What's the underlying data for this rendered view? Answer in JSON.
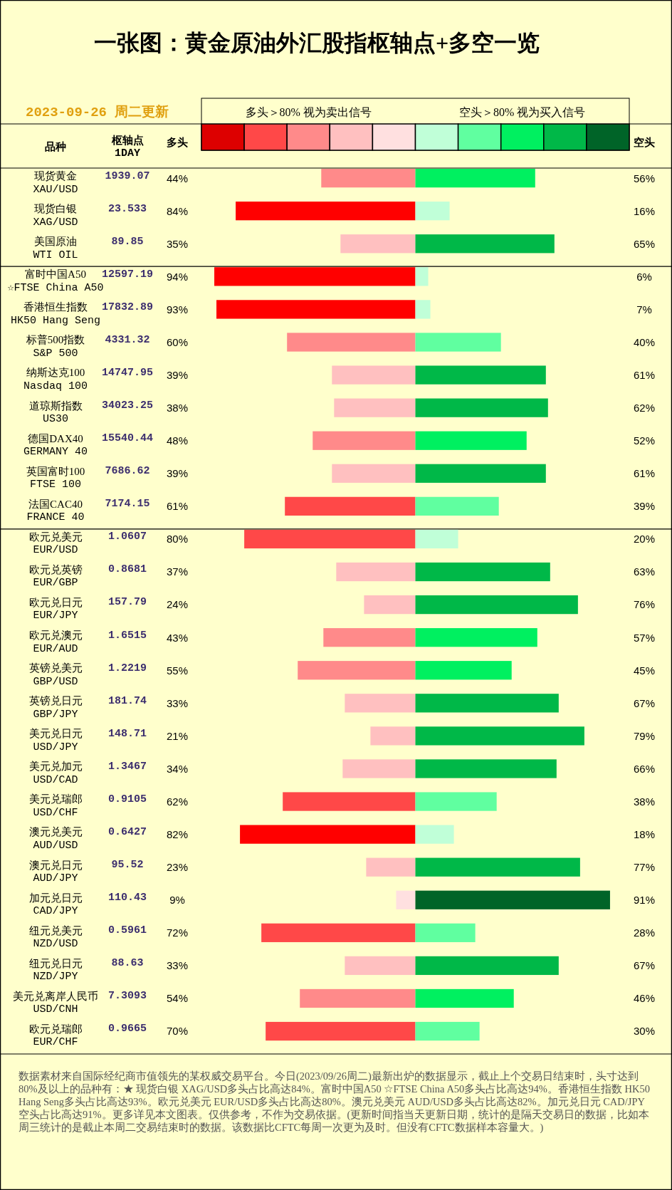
{
  "chart_data": [
    {
      "type": "bar",
      "orientation": "horizontal",
      "title": "一张图：黄金原油外汇股指枢轴点+多空一览",
      "subtitle": "2023-09-26 周二更新",
      "ylabel": "品种",
      "tick_labels": "y",
      "annotations": [
        "多头＞80% 视为卖出信号",
        "枢轴点\n1DAY",
        "多头",
        "1939.07",
        "23.533",
        "89.85"
      ],
      "categories": [
        "现货黄金\nXAU/USD",
        "现货白银\nXAG/USD",
        "美国原油\nWTI OIL"
      ],
      "series": [
        {
          "values": [
            44,
            84,
            35
          ],
          "value_labels": [
            "44%",
            "84%",
            "35%"
          ],
          "colors": [
            "#FF8A8A",
            "#FF0000",
            "#FFC0C0"
          ]
        }
      ]
    },
    {
      "type": "bar",
      "orientation": "horizontal",
      "tick_labels": false,
      "annotations": [
        "空头＞80% 视为买入信号",
        "空头"
      ],
      "categories": [
        "现货黄金\nXAU/USD",
        "现货白银\nXAG/USD",
        "美国原油\nWTI OIL"
      ],
      "series": [
        {
          "values": [
            56,
            16,
            65
          ],
          "value_labels": [
            "56%",
            "16%",
            "65%"
          ],
          "colors": [
            "#00F060",
            "#C0FFD8",
            "#00B848"
          ]
        }
      ]
    },
    {
      "type": "bar",
      "orientation": "horizontal",
      "tick_labels": "y",
      "annotations": [
        "12597.19",
        "17832.89",
        "4331.32",
        "14747.95",
        "34023.25",
        "15540.44",
        "7686.62",
        "7174.15"
      ],
      "categories": [
        "富时中国A50\n☆FTSE China A50",
        "香港恒生指数\nHK50 Hang Seng",
        "标普500指数\nS&P 500",
        "纳斯达克100\nNasdaq 100",
        "道琼斯指数\nUS30",
        "德国DAX40\nGERMANY 40",
        "英国富时100\nFTSE 100",
        "法国CAC40\nFRANCE 40"
      ],
      "series": [
        {
          "values": [
            94,
            93,
            60,
            39,
            38,
            48,
            39,
            61
          ],
          "value_labels": [
            "94%",
            "93%",
            "60%",
            "39%",
            "38%",
            "48%",
            "39%",
            "61%"
          ],
          "colors": [
            "#FF0000",
            "#FF0000",
            "#FF8A8A",
            "#FFC0C0",
            "#FFC0C0",
            "#FF8A8A",
            "#FFC0C0",
            "#FF4848"
          ]
        }
      ]
    },
    {
      "type": "bar",
      "orientation": "horizontal",
      "tick_labels": false,
      "categories": [
        "富时中国A50\n☆FTSE China A50",
        "香港恒生指数\nHK50 Hang Seng",
        "标普500指数\nS&P 500",
        "纳斯达克100\nNasdaq 100",
        "道琼斯指数\nUS30",
        "德国DAX40\nGERMANY 40",
        "英国富时100\nFTSE 100",
        "法国CAC40\nFRANCE 40"
      ],
      "series": [
        {
          "values": [
            6,
            7,
            40,
            61,
            62,
            52,
            61,
            39
          ],
          "value_labels": [
            "6%",
            "7%",
            "40%",
            "61%",
            "62%",
            "52%",
            "61%",
            "39%"
          ],
          "colors": [
            "#C0FFD8",
            "#C0FFD8",
            "#60FFA0",
            "#00B848",
            "#00B848",
            "#00F060",
            "#00B848",
            "#60FFA0"
          ]
        }
      ]
    },
    {
      "type": "bar",
      "orientation": "horizontal",
      "tick_labels": "y",
      "annotations": [
        "1.0607",
        "0.8681",
        "157.79",
        "1.6515",
        "1.2219",
        "181.74",
        "148.71",
        "1.3467",
        "0.9105",
        "0.6427",
        "95.52",
        "110.43",
        "0.5961",
        "88.63",
        "7.3093",
        "0.9665",
        "数据素材来自国际经纪商市值领先的某权威交易平台。今日(2023/09/26周二)最新出炉的数据显示，截止上个交易日结束时，头寸达到80%及以上的品种有：★ 现货白银 XAG/USD多头占比高达84%。富时中国A50 ☆FTSE China A50多头占比高达94%。香港恒生指数 HK50 Hang Seng多头占比高达93%。欧元兑美元 EUR/USD多头占比高达80%。澳元兑美元 AUD/USD多头占比高达82%。加元兑日元 CAD/JPY空头占比高达91%。更多详见本文图表。仅供参考，不作为交易依据。(更新时间指当天更新日期，统计的是隔天交易日的数据，比如本周三统计的是截止本周二交易结束时的数据。该数据比CFTC每周一次更为及时。但没有CFTC数据样本容量大。)"
      ],
      "categories": [
        "欧元兑美元\nEUR/USD",
        "欧元兑英镑\nEUR/GBP",
        "欧元兑日元\nEUR/JPY",
        "欧元兑澳元\nEUR/AUD",
        "英镑兑美元\nGBP/USD",
        "英镑兑日元\nGBP/JPY",
        "美元兑日元\nUSD/JPY",
        "美元兑加元\nUSD/CAD",
        "美元兑瑞郎\nUSD/CHF",
        "澳元兑美元\nAUD/USD",
        "澳元兑日元\nAUD/JPY",
        "加元兑日元\nCAD/JPY",
        "纽元兑美元\nNZD/USD",
        "纽元兑日元\nNZD/JPY",
        "美元兑离岸人民币\nUSD/CNH",
        "欧元兑瑞郎\nEUR/CHF"
      ],
      "series": [
        {
          "values": [
            80,
            37,
            24,
            43,
            55,
            33,
            21,
            34,
            62,
            82,
            23,
            9,
            72,
            33,
            54,
            70
          ],
          "value_labels": [
            "80%",
            "37%",
            "24%",
            "43%",
            "55%",
            "33%",
            "21%",
            "34%",
            "62%",
            "82%",
            "23%",
            "9%",
            "72%",
            "33%",
            "54%",
            "70%"
          ],
          "colors": [
            "#FF4848",
            "#FFC0C0",
            "#FFC0C0",
            "#FF8A8A",
            "#FF8A8A",
            "#FFC0C0",
            "#FFC0C0",
            "#FFC0C0",
            "#FF4848",
            "#FF0000",
            "#FFC0C0",
            "#FFE0E0",
            "#FF4848",
            "#FFC0C0",
            "#FF8A8A",
            "#FF4848"
          ]
        }
      ]
    },
    {
      "type": "bar",
      "orientation": "horizontal",
      "tick_labels": false,
      "categories": [
        "欧元兑美元\nEUR/USD",
        "欧元兑英镑\nEUR/GBP",
        "欧元兑日元\nEUR/JPY",
        "欧元兑澳元\nEUR/AUD",
        "英镑兑美元\nGBP/USD",
        "英镑兑日元\nGBP/JPY",
        "美元兑日元\nUSD/JPY",
        "美元兑加元\nUSD/CAD",
        "美元兑瑞郎\nUSD/CHF",
        "澳元兑美元\nAUD/USD",
        "澳元兑日元\nAUD/JPY",
        "加元兑日元\nCAD/JPY",
        "纽元兑美元\nNZD/USD",
        "纽元兑日元\nNZD/JPY",
        "美元兑离岸人民币\nUSD/CNH",
        "欧元兑瑞郎\nEUR/CHF"
      ],
      "series": [
        {
          "values": [
            20,
            63,
            76,
            57,
            45,
            67,
            79,
            66,
            38,
            18,
            77,
            91,
            28,
            67,
            46,
            30
          ],
          "value_labels": [
            "20%",
            "63%",
            "76%",
            "57%",
            "45%",
            "67%",
            "79%",
            "66%",
            "38%",
            "18%",
            "77%",
            "91%",
            "28%",
            "67%",
            "46%",
            "30%"
          ],
          "colors": [
            "#C0FFD8",
            "#00B848",
            "#00B848",
            "#00F060",
            "#00F060",
            "#00B848",
            "#00B848",
            "#00B848",
            "#60FFA0",
            "#C0FFD8",
            "#00B848",
            "#006428",
            "#60FFA0",
            "#00B848",
            "#00F060",
            "#60FFA0"
          ]
        }
      ]
    }
  ]
}
